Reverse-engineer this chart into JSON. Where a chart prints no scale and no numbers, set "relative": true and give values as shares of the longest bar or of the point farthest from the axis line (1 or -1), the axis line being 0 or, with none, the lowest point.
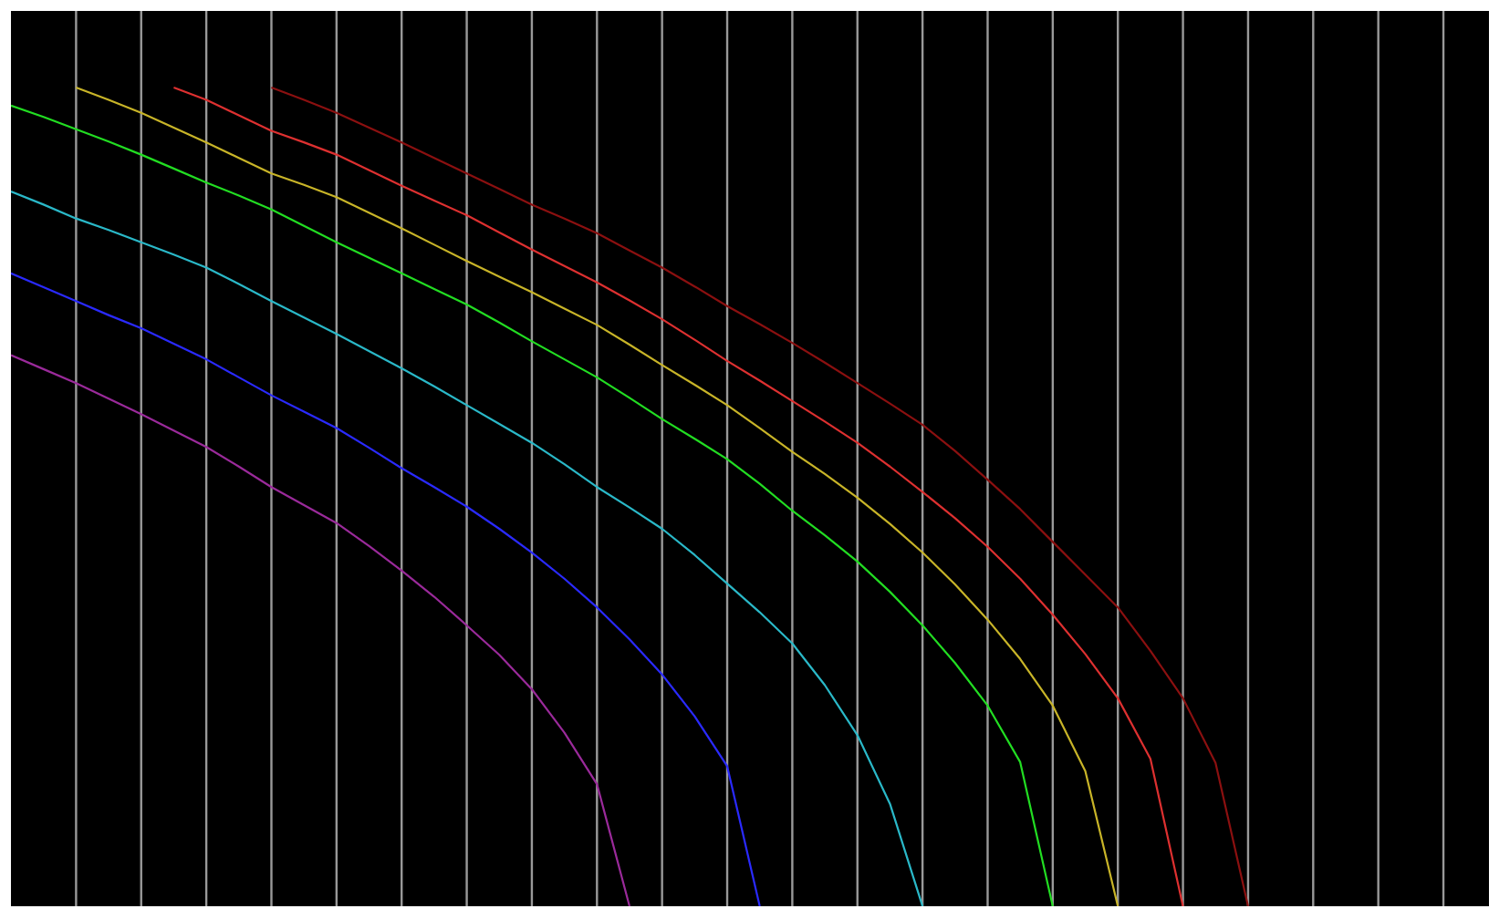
{
  "chart_data": {
    "type": "line",
    "relative": true,
    "grid": "x",
    "categories": [
      null,
      null,
      null,
      null,
      null,
      null,
      null,
      null,
      null,
      null,
      null,
      null,
      null,
      null,
      null,
      null,
      null,
      null,
      null,
      null,
      null,
      null,
      null,
      null,
      null,
      null,
      null,
      null,
      null,
      null,
      null,
      null,
      null,
      null,
      null,
      null,
      null,
      null,
      null,
      null,
      null,
      null,
      null,
      null,
      null,
      null
    ],
    "series": [
      {
        "color": "#9a2a9a",
        "values": [
          0.673,
          0.656,
          0.639,
          0.62,
          0.601,
          0.581,
          0.561,
          0.537,
          0.512,
          0.49,
          0.468,
          0.44,
          0.41,
          0.378,
          0.343,
          0.307,
          0.265,
          0.212,
          0.149,
          0,
          null,
          null,
          null,
          null,
          null,
          null,
          null,
          null,
          null,
          null,
          null,
          null,
          null,
          null,
          null,
          null,
          null,
          null,
          null,
          null,
          null,
          null,
          null,
          null,
          null,
          null
        ]
      },
      {
        "color": "#2a2aff",
        "values": [
          0.773,
          0.756,
          0.739,
          0.722,
          0.706,
          0.687,
          0.668,
          0.646,
          0.624,
          0.604,
          0.584,
          0.56,
          0.535,
          0.512,
          0.488,
          0.461,
          0.432,
          0.4,
          0.365,
          0.326,
          0.283,
          0.232,
          0.171,
          0,
          null,
          null,
          null,
          null,
          null,
          null,
          null,
          null,
          null,
          null,
          null,
          null,
          null,
          null,
          null,
          null,
          null,
          null,
          null,
          null,
          null,
          null
        ]
      },
      {
        "color": "#2ab8c8",
        "values": [
          0.873,
          0.857,
          0.84,
          0.826,
          0.811,
          0.796,
          0.78,
          0.76,
          0.739,
          0.719,
          0.699,
          0.678,
          0.657,
          0.635,
          0.612,
          0.589,
          0.566,
          0.54,
          0.512,
          0.487,
          0.461,
          0.429,
          0.394,
          0.359,
          0.321,
          0.27,
          0.209,
          0.125,
          0,
          null,
          null,
          null,
          null,
          null,
          null,
          null,
          null,
          null,
          null,
          null,
          null,
          null,
          null,
          null,
          null,
          null
        ]
      },
      {
        "color": "#22dd22",
        "values": [
          0.978,
          0.964,
          0.949,
          0.934,
          0.918,
          0.901,
          0.884,
          0.868,
          0.851,
          0.831,
          0.811,
          0.792,
          0.773,
          0.754,
          0.735,
          0.713,
          0.69,
          0.668,
          0.646,
          0.621,
          0.595,
          0.571,
          0.546,
          0.516,
          0.483,
          0.453,
          0.421,
          0.384,
          0.343,
          0.297,
          0.245,
          0.176,
          0,
          null,
          null,
          null,
          null,
          null,
          null,
          null,
          null,
          null,
          null,
          null,
          null,
          null
        ]
      },
      {
        "color": "#c8b428",
        "values": [
          null,
          null,
          1,
          0.985,
          0.969,
          0.951,
          0.933,
          0.914,
          0.895,
          0.881,
          0.866,
          0.847,
          0.828,
          0.808,
          0.788,
          0.769,
          0.75,
          0.73,
          0.71,
          0.686,
          0.661,
          0.637,
          0.612,
          0.584,
          0.555,
          0.528,
          0.499,
          0.467,
          0.432,
          0.393,
          0.35,
          0.302,
          0.245,
          0.165,
          0,
          null,
          null,
          null,
          null,
          null,
          null,
          null,
          null,
          null,
          null,
          null
        ]
      },
      {
        "color": "#dd3030",
        "values": [
          null,
          null,
          null,
          null,
          null,
          1,
          0.985,
          0.966,
          0.947,
          0.933,
          0.918,
          0.899,
          0.88,
          0.862,
          0.844,
          0.823,
          0.802,
          0.782,
          0.762,
          0.74,
          0.717,
          0.692,
          0.666,
          0.642,
          0.617,
          0.592,
          0.566,
          0.537,
          0.506,
          0.474,
          0.439,
          0.4,
          0.356,
          0.308,
          0.254,
          0.18,
          0,
          null,
          null,
          null,
          null,
          null,
          null,
          null,
          null,
          null
        ]
      },
      {
        "color": "#8b1010",
        "values": [
          null,
          null,
          null,
          null,
          null,
          null,
          null,
          null,
          1,
          0.985,
          0.969,
          0.951,
          0.933,
          0.914,
          0.895,
          0.876,
          0.857,
          0.84,
          0.822,
          0.801,
          0.78,
          0.757,
          0.733,
          0.711,
          0.688,
          0.664,
          0.639,
          0.614,
          0.588,
          0.556,
          0.521,
          0.485,
          0.445,
          0.405,
          0.365,
          0.312,
          0.254,
          0.175,
          0,
          null,
          null,
          null,
          null,
          null,
          null,
          null
        ]
      }
    ]
  }
}
